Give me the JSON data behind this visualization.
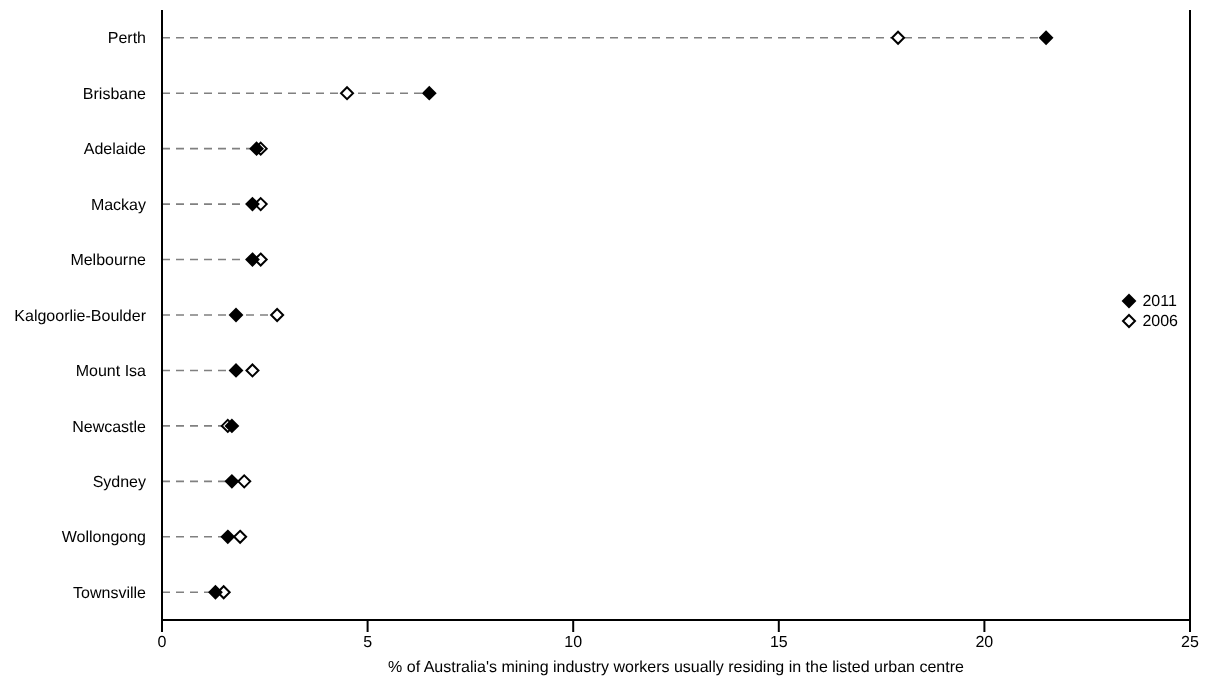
{
  "chart_data": {
    "type": "scatter",
    "xlabel": "% of Australia's mining industry workers usually residing in the listed urban centre",
    "categories": [
      "Perth",
      "Brisbane",
      "Adelaide",
      "Mackay",
      "Melbourne",
      "Kalgoorlie-Boulder",
      "Mount Isa",
      "Newcastle",
      "Sydney",
      "Wollongong",
      "Townsville"
    ],
    "orientation": "horizontal",
    "marker": "diamond",
    "series": [
      {
        "name": "2011",
        "color": "#000000",
        "values": [
          21.5,
          6.5,
          2.3,
          2.2,
          2.2,
          1.8,
          1.8,
          1.7,
          1.7,
          1.6,
          1.3
        ]
      },
      {
        "name": "2006",
        "color": "#ffffff",
        "values": [
          17.9,
          4.5,
          2.4,
          2.4,
          2.4,
          2.8,
          2.2,
          1.6,
          2.0,
          1.9,
          1.5
        ]
      }
    ],
    "xlim": [
      0,
      25
    ],
    "xticks": [
      0,
      5,
      10,
      15,
      20,
      25
    ],
    "grid": "y",
    "legend": "right"
  }
}
